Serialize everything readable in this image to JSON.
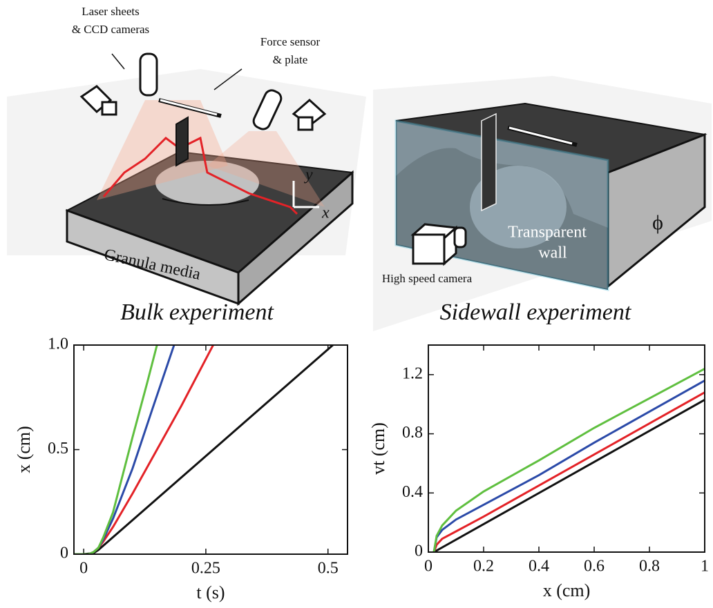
{
  "illustration": {
    "laser_label_1": "Laser sheets",
    "laser_label_2": "& CCD cameras",
    "force_label_1": "Force sensor",
    "force_label_2": "& plate",
    "axis_y": "y",
    "axis_x": "x",
    "granular_label": "Granula media",
    "wall_label_1": "Transparent",
    "wall_label_2": "wall",
    "phi_label": "ϕ",
    "camera_label": "High speed camera",
    "bulk_caption": "Bulk experiment",
    "sidewall_caption": "Sidewall experiment"
  },
  "chart_data": [
    {
      "type": "line",
      "x_label": "t (s)",
      "y_label": "x (cm)",
      "xlim": [
        -0.02,
        0.54
      ],
      "xticks": [
        0,
        0.25,
        0.5
      ],
      "ylim": [
        0,
        1
      ],
      "yticks": [
        0,
        0.5,
        {
          "value": 1,
          "label": "1.0"
        }
      ],
      "series": [
        {
          "color": "#111111",
          "x": [
            -0.02,
            0.0,
            0.02,
            0.03,
            0.51
          ],
          "values": [
            0,
            0,
            0.005,
            0.02,
            1.0
          ]
        },
        {
          "color": "#e32227",
          "x": [
            -0.02,
            0.01,
            0.02,
            0.03,
            0.04,
            0.06,
            0.1,
            0.15,
            0.2,
            0.265
          ],
          "values": [
            0,
            0,
            0.01,
            0.03,
            0.06,
            0.13,
            0.29,
            0.5,
            0.71,
            1.0
          ]
        },
        {
          "color": "#2b4aa8",
          "x": [
            -0.02,
            0.01,
            0.02,
            0.03,
            0.04,
            0.06,
            0.1,
            0.14,
            0.185
          ],
          "values": [
            0,
            0,
            0.01,
            0.03,
            0.07,
            0.17,
            0.41,
            0.69,
            1.0
          ]
        },
        {
          "color": "#5fbf3f",
          "x": [
            -0.02,
            0.01,
            0.02,
            0.03,
            0.04,
            0.06,
            0.1,
            0.13,
            0.15
          ],
          "values": [
            0,
            0,
            0.01,
            0.03,
            0.08,
            0.2,
            0.56,
            0.82,
            1.0
          ]
        }
      ]
    },
    {
      "type": "line",
      "x_label": "x (cm)",
      "y_label": "vt (cm)",
      "xlim": [
        0,
        1
      ],
      "xticks": [
        0,
        0.2,
        0.4,
        0.6,
        0.8,
        1
      ],
      "ylim": [
        0,
        1.4
      ],
      "yticks": [
        0,
        0.4,
        0.8,
        1.2
      ],
      "series": [
        {
          "color": "#111111",
          "x": [
            0.02,
            1
          ],
          "values": [
            0,
            1.03
          ]
        },
        {
          "color": "#e32227",
          "x": [
            0.02,
            0.03,
            0.05,
            0.1,
            0.2,
            0.4,
            0.6,
            0.8,
            1
          ],
          "values": [
            0,
            0.05,
            0.09,
            0.14,
            0.24,
            0.45,
            0.66,
            0.87,
            1.08
          ]
        },
        {
          "color": "#2b4aa8",
          "x": [
            0.02,
            0.03,
            0.05,
            0.1,
            0.2,
            0.4,
            0.6,
            0.8,
            1
          ],
          "values": [
            0,
            0.1,
            0.15,
            0.22,
            0.32,
            0.52,
            0.74,
            0.95,
            1.16
          ]
        },
        {
          "color": "#5fbf3f",
          "x": [
            0.02,
            0.03,
            0.05,
            0.1,
            0.2,
            0.4,
            0.6,
            0.8,
            1
          ],
          "values": [
            0,
            0.11,
            0.18,
            0.28,
            0.41,
            0.62,
            0.84,
            1.04,
            1.24
          ]
        }
      ]
    }
  ]
}
